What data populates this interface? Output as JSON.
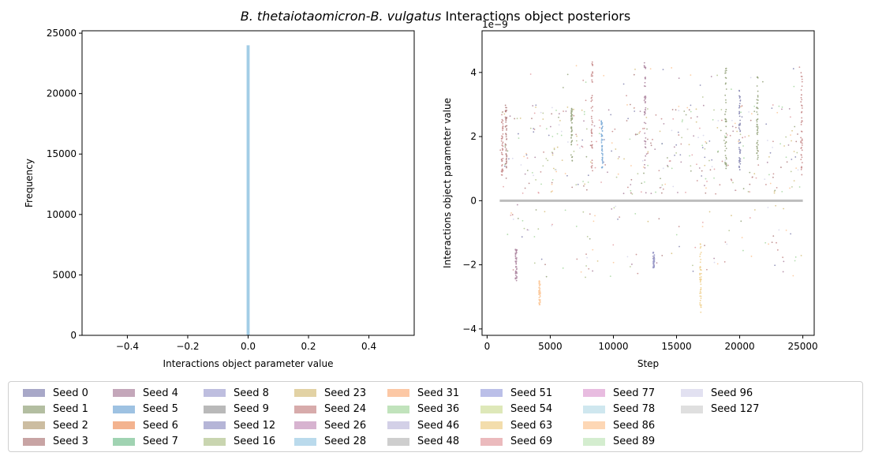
{
  "figure": {
    "title_italic": "B. thetaiotaomicron-B. vulgatus",
    "title_rest": "Interactions object posteriors"
  },
  "chart_data": [
    {
      "type": "histogram",
      "xlabel": "Interactions object parameter value",
      "ylabel": "Frequency",
      "xlim": [
        -0.55,
        0.55
      ],
      "ylim": [
        0,
        25200
      ],
      "xticks": [
        "−0.4",
        "−0.2",
        "0.0",
        "0.2",
        "0.4"
      ],
      "xtick_values": [
        -0.4,
        -0.2,
        0.0,
        0.2,
        0.4
      ],
      "yticks": [
        "0",
        "5000",
        "10000",
        "15000",
        "20000",
        "25000"
      ],
      "ytick_values": [
        0,
        5000,
        10000,
        15000,
        20000,
        25000
      ],
      "bars": [
        {
          "x_start": -0.005,
          "x_end": 0.005,
          "value": 24000,
          "series": "Seed 28"
        }
      ]
    },
    {
      "type": "scatter",
      "xlabel": "Step",
      "ylabel": "Interactions object parameter value",
      "offset_text": "1e−9",
      "xlim": [
        -400,
        25900
      ],
      "ylim": [
        -4.2,
        5.3
      ],
      "xticks": [
        "0",
        "5000",
        "10000",
        "15000",
        "20000",
        "25000"
      ],
      "xtick_values": [
        0,
        5000,
        10000,
        15000,
        20000,
        25000
      ],
      "yticks": [
        "−4",
        "−2",
        "0",
        "2",
        "4"
      ],
      "ytick_values": [
        -4,
        -2,
        0,
        2,
        4
      ],
      "step_range": [
        1000,
        25000
      ],
      "series_note_zero_line": {
        "series": "Seed 48",
        "value": 0
      },
      "clusters": [
        {
          "x": 1200,
          "lo": 0.8,
          "hi": 2.8,
          "series": "Seed 24"
        },
        {
          "x": 1500,
          "lo": 1.0,
          "hi": 3.0,
          "series": "Seed 3"
        },
        {
          "x": 2300,
          "lo": -2.5,
          "hi": -1.5,
          "series": "Seed 4"
        },
        {
          "x": 4150,
          "lo": -3.3,
          "hi": -2.5,
          "series": "Seed 86"
        },
        {
          "x": 6700,
          "lo": 1.2,
          "hi": 2.9,
          "series": "Seed 1"
        },
        {
          "x": 8300,
          "lo": 0.8,
          "hi": 4.4,
          "series": "Seed 24"
        },
        {
          "x": 9100,
          "lo": 1.0,
          "hi": 2.5,
          "series": "Seed 5"
        },
        {
          "x": 12500,
          "lo": 1.0,
          "hi": 4.3,
          "series": "Seed 4"
        },
        {
          "x": 13200,
          "lo": -2.1,
          "hi": -1.6,
          "series": "Seed 12"
        },
        {
          "x": 16900,
          "lo": -3.7,
          "hi": -1.3,
          "series": "Seed 63"
        },
        {
          "x": 18900,
          "lo": 1.0,
          "hi": 4.3,
          "series": "Seed 1"
        },
        {
          "x": 20000,
          "lo": 0.8,
          "hi": 3.5,
          "series": "Seed 0"
        },
        {
          "x": 21400,
          "lo": 1.2,
          "hi": 4.0,
          "series": "Seed 1"
        },
        {
          "x": 24900,
          "lo": 0.8,
          "hi": 4.0,
          "series": "Seed 24"
        }
      ]
    }
  ],
  "legend": {
    "items": [
      {
        "label": "Seed 0",
        "color": "#8b8bb5"
      },
      {
        "label": "Seed 1",
        "color": "#9aa882"
      },
      {
        "label": "Seed 2",
        "color": "#bba782"
      },
      {
        "label": "Seed 3",
        "color": "#b58585"
      },
      {
        "label": "Seed 4",
        "color": "#b08aa3"
      },
      {
        "label": "Seed 5",
        "color": "#7eadd8"
      },
      {
        "label": "Seed 6",
        "color": "#ef9a6a"
      },
      {
        "label": "Seed 7",
        "color": "#80c498"
      },
      {
        "label": "Seed 8",
        "color": "#a8a8d4"
      },
      {
        "label": "Seed 9",
        "color": "#a2a2a2"
      },
      {
        "label": "Seed 12",
        "color": "#9c9cc9"
      },
      {
        "label": "Seed 16",
        "color": "#b7c795"
      },
      {
        "label": "Seed 23",
        "color": "#d8c386"
      },
      {
        "label": "Seed 24",
        "color": "#c98f8f"
      },
      {
        "label": "Seed 26",
        "color": "#c99ac0"
      },
      {
        "label": "Seed 28",
        "color": "#a3cde6"
      },
      {
        "label": "Seed 31",
        "color": "#fbb687"
      },
      {
        "label": "Seed 36",
        "color": "#acd9a6"
      },
      {
        "label": "Seed 46",
        "color": "#c4c0df"
      },
      {
        "label": "Seed 48",
        "color": "#bdbdbd"
      },
      {
        "label": "Seed 51",
        "color": "#a4a9e0"
      },
      {
        "label": "Seed 54",
        "color": "#d3e0a1"
      },
      {
        "label": "Seed 63",
        "color": "#efd190"
      },
      {
        "label": "Seed 69",
        "color": "#e4a3a7"
      },
      {
        "label": "Seed 77",
        "color": "#e0a6d6"
      },
      {
        "label": "Seed 78",
        "color": "#bfdfea"
      },
      {
        "label": "Seed 86",
        "color": "#fcc99c"
      },
      {
        "label": "Seed 89",
        "color": "#c5e7bf"
      },
      {
        "label": "Seed 96",
        "color": "#d8d7ec"
      },
      {
        "label": "Seed 127",
        "color": "#d4d4d4"
      }
    ]
  }
}
